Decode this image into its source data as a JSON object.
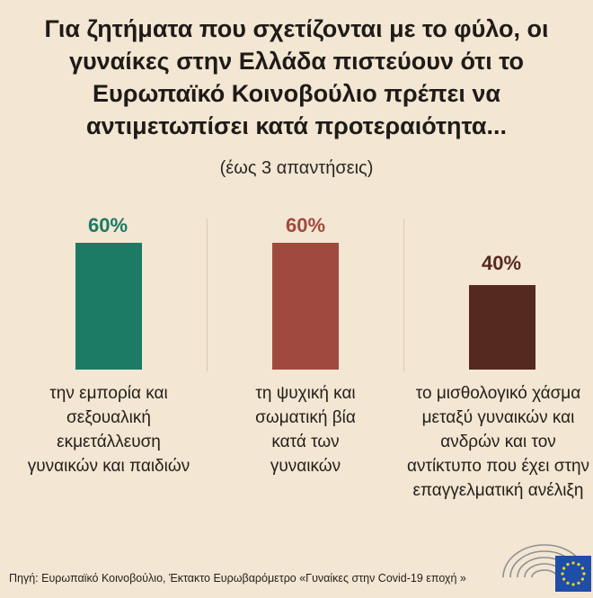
{
  "title_lines": [
    "Για ζητήματα που σχετίζονται με το φύλο, οι",
    "γυναίκες στην Ελλάδα πιστεύουν ότι το",
    "Ευρωπαϊκό Κοινοβούλιο πρέπει να",
    "αντιμετωπίσει κατά προτεραιότητα..."
  ],
  "subtitle": "(έως 3 απαντήσεις)",
  "source": "Πηγή: Ευρωπαϊκό Κοινοβούλιο, Έκτακτο Ευρωβαρόμετρο «Γυναίκες στην Covid-19 εποχή »",
  "chart_data": {
    "type": "bar",
    "value_unit": "%",
    "ylim": [
      0,
      60
    ],
    "categories": [
      "την εμπορία και σεξουαλική εκμετάλλευση γυναικών και παιδιών",
      "τη ψυχική και σωματική βία κατά των γυναικών",
      "το μισθολογικό χάσμα μεταξύ γυναικών και ανδρών και τον αντίκτυπο που έχει στην επαγγελματική ανέλιξη"
    ],
    "values": [
      60,
      60,
      40
    ],
    "value_labels": [
      "60%",
      "60%",
      "40%"
    ],
    "category_label_lines": [
      [
        "την εμπορία και",
        "σεξουαλική",
        "εκμετάλλευση",
        "γυναικών και παιδιών"
      ],
      [
        "τη ψυχική και",
        "σωματική βία",
        "κατά των",
        "γυναικών"
      ],
      [
        "το μισθολογικό χάσμα",
        "μεταξύ γυναικών και",
        "ανδρών και τον",
        "αντίκτυπο που έχει στην",
        "επαγγελματική ανέλιξη"
      ]
    ],
    "colors": [
      "#1b7b64",
      "#a04a3f",
      "#56291f"
    ],
    "grid": false,
    "legend": "none"
  },
  "icons": [
    "parliament-hemicycle-icon",
    "eu-flag-icon"
  ],
  "logo_colors": {
    "flag": "#1f4ea8",
    "stars": "#f3d42a",
    "hemicycle": "#8f8f96"
  }
}
